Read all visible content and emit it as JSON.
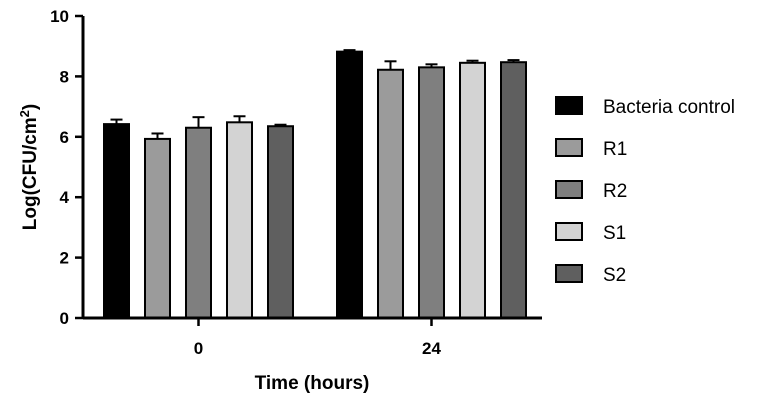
{
  "chart_data": {
    "type": "bar",
    "categories": [
      "0",
      "24"
    ],
    "series": [
      {
        "name": "Bacteria control",
        "values": [
          6.42,
          8.82
        ],
        "errors": [
          0.15,
          0.05
        ],
        "color": "#000000"
      },
      {
        "name": "R1",
        "values": [
          5.93,
          8.22
        ],
        "errors": [
          0.18,
          0.28
        ],
        "color": "#9b9b9b"
      },
      {
        "name": "R2",
        "values": [
          6.3,
          8.3
        ],
        "errors": [
          0.35,
          0.1
        ],
        "color": "#7f7f7f"
      },
      {
        "name": "S1",
        "values": [
          6.48,
          8.45
        ],
        "errors": [
          0.2,
          0.07
        ],
        "color": "#d3d3d3"
      },
      {
        "name": "S2",
        "values": [
          6.35,
          8.47
        ],
        "errors": [
          0.05,
          0.07
        ],
        "color": "#5f5f5f"
      }
    ],
    "xlabel": "Time (hours)",
    "ylabel": "Log(CFU/cm",
    "ylabel_superscript": "2",
    "ylabel_close": ")",
    "ylim": [
      0,
      10
    ],
    "yticks": [
      "0",
      "2",
      "4",
      "6",
      "8",
      "10"
    ],
    "legend_position": "right",
    "grid": false
  }
}
